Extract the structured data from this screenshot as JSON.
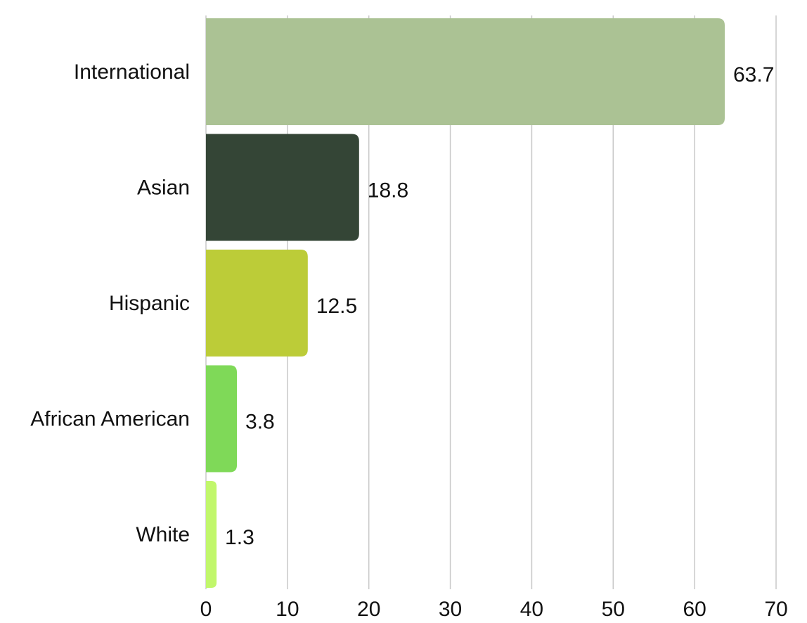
{
  "chart_data": {
    "type": "bar",
    "orientation": "horizontal",
    "title": "",
    "xlabel": "",
    "ylabel": "",
    "categories": [
      "International",
      "Asian",
      "Hispanic",
      "African American",
      "White"
    ],
    "values": [
      63.7,
      18.8,
      12.5,
      3.8,
      1.3
    ],
    "value_labels": [
      "63.7",
      "18.8",
      "12.5",
      "3.8",
      "1.3"
    ],
    "colors": [
      "#abc294",
      "#344536",
      "#bccc38",
      "#7fd958",
      "#c1f76b"
    ],
    "xlim": [
      0,
      70
    ],
    "ticks": [
      0,
      10,
      20,
      30,
      40,
      50,
      60,
      70
    ],
    "tick_labels": [
      "0",
      "10",
      "20",
      "30",
      "40",
      "50",
      "60",
      "70"
    ],
    "grid": "vertical",
    "legend": "none"
  }
}
